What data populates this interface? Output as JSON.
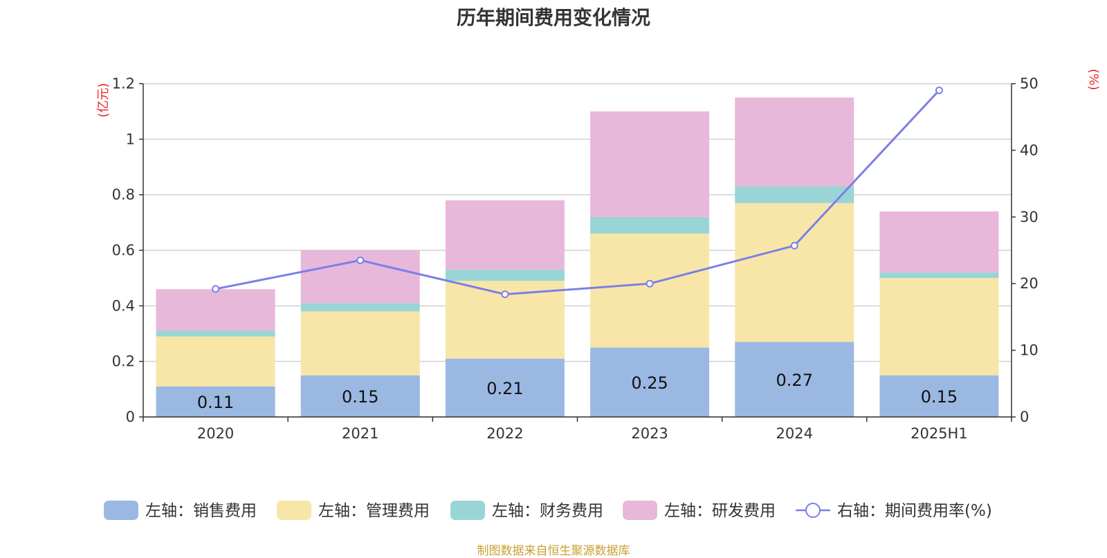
{
  "title": "历年期间费用变化情况",
  "source": "制图数据来自恒生聚源数据库",
  "chart_data": {
    "type": "bar",
    "stacked": true,
    "categories": [
      "2020",
      "2021",
      "2022",
      "2023",
      "2024",
      "2025H1"
    ],
    "left_axis": {
      "unit": "(亿元)",
      "min": 0,
      "max": 1.2,
      "ticks": [
        "0",
        "0.2",
        "0.4",
        "0.6",
        "0.8",
        "1",
        "1.2"
      ]
    },
    "right_axis": {
      "unit": "(%)",
      "min": 0,
      "max": 50,
      "ticks": [
        "0",
        "10",
        "20",
        "30",
        "40",
        "50"
      ]
    },
    "grid": true,
    "legend_position": "bottom",
    "series": [
      {
        "name": "左轴：销售费用",
        "axis": "left",
        "color": "#9bb8e2",
        "values": [
          0.11,
          0.15,
          0.21,
          0.25,
          0.27,
          0.15
        ],
        "labels": [
          "0.11",
          "0.15",
          "0.21",
          "0.25",
          "0.27",
          "0.15"
        ]
      },
      {
        "name": "左轴：管理费用",
        "axis": "left",
        "color": "#f7e6a8",
        "values": [
          0.18,
          0.23,
          0.28,
          0.41,
          0.5,
          0.35
        ]
      },
      {
        "name": "左轴：财务费用",
        "axis": "left",
        "color": "#99d5d6",
        "values": [
          0.02,
          0.03,
          0.04,
          0.06,
          0.06,
          0.02
        ]
      },
      {
        "name": "左轴：研发费用",
        "axis": "left",
        "color": "#e7b8d9",
        "values": [
          0.15,
          0.19,
          0.25,
          0.38,
          0.32,
          0.22
        ]
      },
      {
        "name": "右轴：期间费用率(%)",
        "axis": "right",
        "type": "line",
        "color": "#7b7fe8",
        "values": [
          19.2,
          23.5,
          18.4,
          20.0,
          25.7,
          49.0
        ]
      }
    ]
  }
}
